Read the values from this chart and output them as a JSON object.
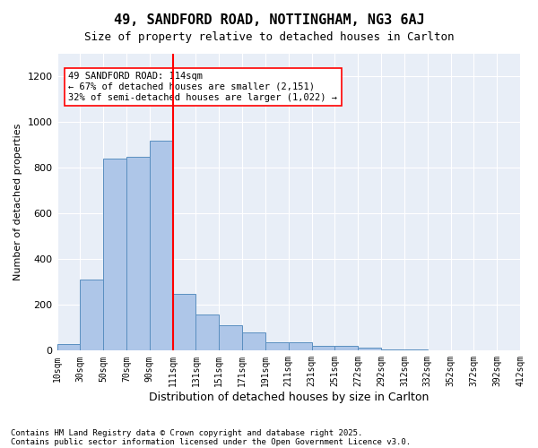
{
  "title1": "49, SANDFORD ROAD, NOTTINGHAM, NG3 6AJ",
  "title2": "Size of property relative to detached houses in Carlton",
  "xlabel": "Distribution of detached houses by size in Carlton",
  "ylabel": "Number of detached properties",
  "bar_values": [
    30,
    310,
    840,
    850,
    920,
    250,
    160,
    110,
    80,
    35,
    35,
    20,
    20,
    15,
    5,
    5,
    0,
    0,
    0,
    0
  ],
  "bin_labels": [
    "10sqm",
    "30sqm",
    "50sqm",
    "70sqm",
    "90sqm",
    "111sqm",
    "131sqm",
    "151sqm",
    "171sqm",
    "191sqm",
    "211sqm",
    "231sqm",
    "251sqm",
    "272sqm",
    "292sqm",
    "312sqm",
    "332sqm",
    "352sqm",
    "372sqm",
    "392sqm",
    "412sqm"
  ],
  "bar_color": "#aec6e8",
  "bar_edge_color": "#5a8fc0",
  "vline_color": "red",
  "annotation_text": "49 SANDFORD ROAD: 114sqm\n← 67% of detached houses are smaller (2,151)\n32% of semi-detached houses are larger (1,022) →",
  "annotation_box_color": "white",
  "annotation_box_edge_color": "red",
  "ylim": [
    0,
    1300
  ],
  "yticks": [
    0,
    200,
    400,
    600,
    800,
    1000,
    1200
  ],
  "background_color": "#e8eef7",
  "footer1": "Contains HM Land Registry data © Crown copyright and database right 2025.",
  "footer2": "Contains public sector information licensed under the Open Government Licence v3.0."
}
